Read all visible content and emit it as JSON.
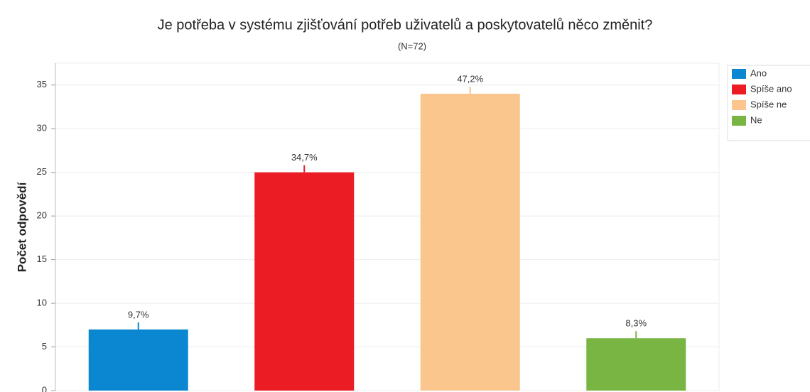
{
  "chart_data": {
    "type": "bar",
    "title": "Je potřeba v systému zjišťování potřeb uživatelů a poskytovatelů něco změnit?",
    "subtitle": "(N=72)",
    "y_label": "Počet odpovědí",
    "categories": [
      "Ano",
      "Spíše ano",
      "Spíše ne",
      "Ne"
    ],
    "values": [
      7,
      25,
      34,
      6
    ],
    "data_labels": [
      "9,7%",
      "34,7%",
      "47,2%",
      "8,3%"
    ],
    "colors": [
      "#0a87d0",
      "#ec1c24",
      "#fbc58e",
      "#78b543"
    ],
    "ylim": [
      0,
      37.5
    ],
    "yticks": [
      0,
      5,
      10,
      15,
      20,
      25,
      30,
      35
    ],
    "grid": true,
    "legend": "right"
  }
}
